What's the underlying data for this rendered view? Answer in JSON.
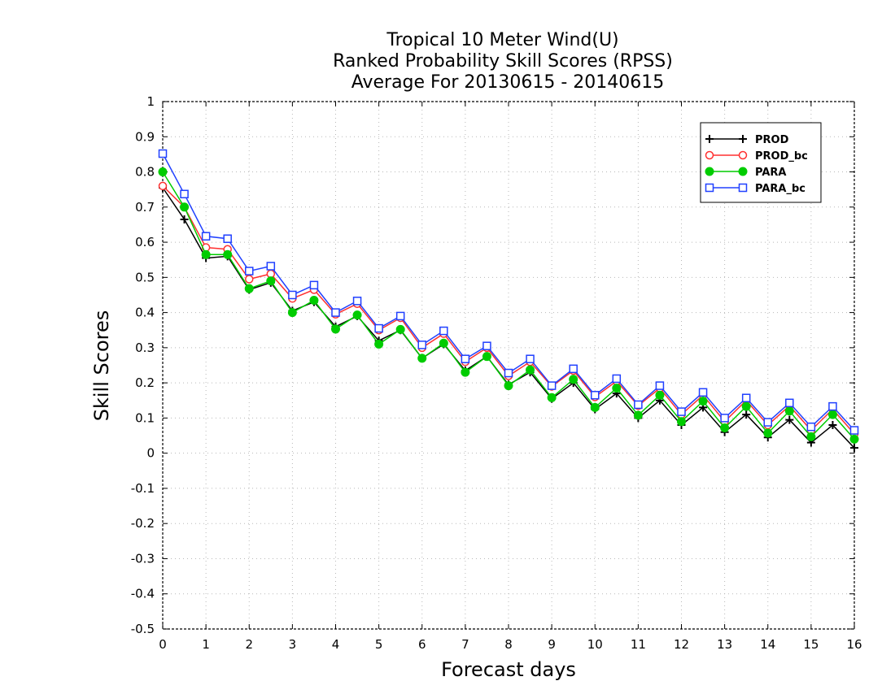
{
  "chart_data": {
    "type": "line",
    "title": [
      "Tropical 10 Meter Wind(U)",
      "Ranked Probability Skill Scores (RPSS)",
      "Average For 20130615 - 20140615"
    ],
    "xlabel": "Forecast days",
    "ylabel": "Skill Scores",
    "xlim": [
      0,
      16
    ],
    "ylim": [
      -0.5,
      1
    ],
    "xticks": [
      "0",
      "1",
      "2",
      "3",
      "4",
      "5",
      "6",
      "7",
      "8",
      "9",
      "10",
      "11",
      "12",
      "13",
      "14",
      "15",
      "16"
    ],
    "yticks": [
      "1",
      "0.9",
      "0.8",
      "0.7",
      "0.6",
      "0.5",
      "0.4",
      "0.3",
      "0.2",
      "0.1",
      "0",
      "-0.1",
      "-0.2",
      "-0.3",
      "-0.4",
      "-0.5"
    ],
    "grid": true,
    "legend_position": "top-right",
    "x": [
      0,
      0.5,
      1,
      1.5,
      2,
      2.5,
      3,
      3.5,
      4,
      4.5,
      5,
      5.5,
      6,
      6.5,
      7,
      7.5,
      8,
      8.5,
      9,
      9.5,
      10,
      10.5,
      11,
      11.5,
      12,
      12.5,
      13,
      13.5,
      14,
      14.5,
      15,
      15.5,
      16
    ],
    "series": [
      {
        "name": "PROD",
        "color": "#000000",
        "marker": "plus",
        "values": [
          0.755,
          0.665,
          0.555,
          0.56,
          0.465,
          0.485,
          0.405,
          0.43,
          0.36,
          0.39,
          0.32,
          0.35,
          0.27,
          0.31,
          0.235,
          0.275,
          0.195,
          0.23,
          0.155,
          0.2,
          0.125,
          0.17,
          0.1,
          0.15,
          0.08,
          0.13,
          0.06,
          0.11,
          0.045,
          0.095,
          0.03,
          0.08,
          0.015
        ]
      },
      {
        "name": "PROD_bc",
        "color": "#ff3030",
        "marker": "circle-open",
        "values": [
          0.76,
          0.7,
          0.585,
          0.58,
          0.495,
          0.51,
          0.44,
          0.465,
          0.395,
          0.425,
          0.35,
          0.385,
          0.3,
          0.34,
          0.26,
          0.3,
          0.22,
          0.26,
          0.19,
          0.235,
          0.16,
          0.205,
          0.135,
          0.185,
          0.11,
          0.165,
          0.09,
          0.15,
          0.08,
          0.135,
          0.065,
          0.125,
          0.055
        ]
      },
      {
        "name": "PARA",
        "color": "#00cc00",
        "marker": "circle-filled",
        "values": [
          0.8,
          0.7,
          0.565,
          0.565,
          0.468,
          0.49,
          0.4,
          0.435,
          0.353,
          0.393,
          0.31,
          0.352,
          0.27,
          0.313,
          0.23,
          0.275,
          0.192,
          0.237,
          0.158,
          0.21,
          0.13,
          0.185,
          0.108,
          0.165,
          0.09,
          0.148,
          0.072,
          0.133,
          0.057,
          0.12,
          0.047,
          0.11,
          0.04
        ]
      },
      {
        "name": "PARA_bc",
        "color": "#2040ff",
        "marker": "square-open",
        "values": [
          0.852,
          0.737,
          0.617,
          0.61,
          0.518,
          0.532,
          0.45,
          0.478,
          0.4,
          0.433,
          0.355,
          0.39,
          0.308,
          0.348,
          0.268,
          0.305,
          0.228,
          0.268,
          0.192,
          0.24,
          0.165,
          0.212,
          0.138,
          0.192,
          0.118,
          0.173,
          0.1,
          0.157,
          0.088,
          0.143,
          0.075,
          0.133,
          0.065
        ]
      }
    ]
  }
}
